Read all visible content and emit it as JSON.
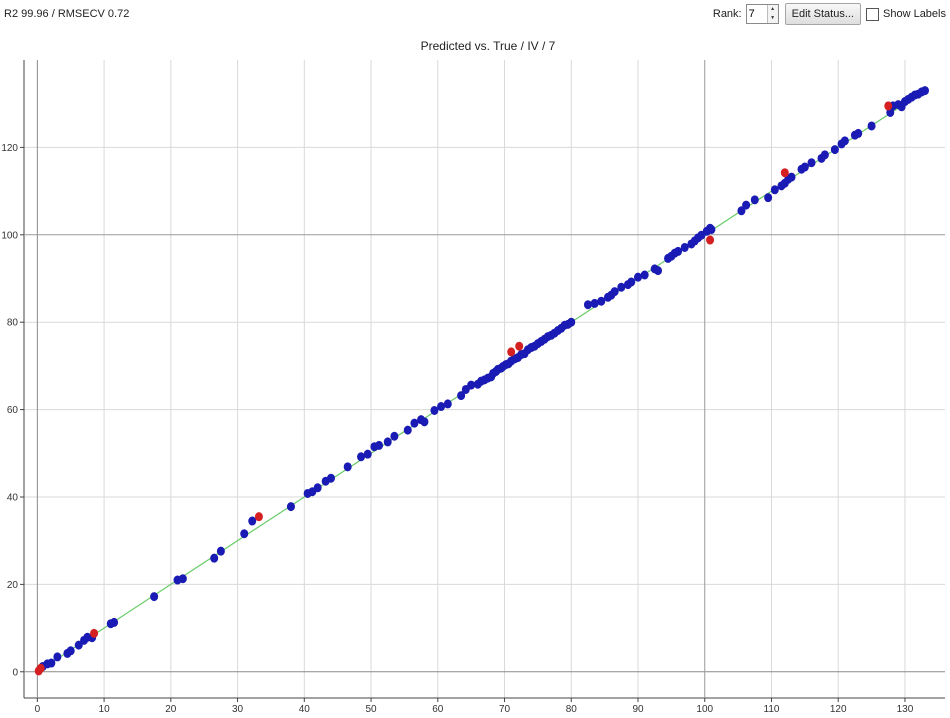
{
  "stats_text": "R2 99.96 / RMSECV 0.72",
  "toolbar": {
    "rank_label": "Rank:",
    "rank_value": "7",
    "edit_status_label": "Edit Status...",
    "show_labels_label": "Show Labels",
    "show_labels_checked": false
  },
  "chart_data": {
    "type": "scatter",
    "title": "Predicted vs. True / IV / 7",
    "xlabel": "",
    "ylabel": "",
    "xlim": [
      -2,
      136
    ],
    "ylim": [
      -6,
      140
    ],
    "xticks": [
      0,
      10,
      20,
      30,
      40,
      50,
      60,
      70,
      80,
      90,
      100,
      110,
      120,
      130
    ],
    "yticks": [
      0,
      20,
      40,
      60,
      80,
      100,
      120
    ],
    "grid": true,
    "fit_line": {
      "x": [
        0,
        133
      ],
      "y": [
        0,
        133
      ],
      "color": "#66cc66"
    },
    "colors": {
      "calibration": "#1a1ab4",
      "outlier": "#d42020",
      "axes": "#444444",
      "grid": "#d9d9d9"
    },
    "series": [
      {
        "color": "#1a1ab4",
        "points": [
          [
            0.8,
            1.2
          ],
          [
            1.5,
            1.8
          ],
          [
            2.1,
            2.0
          ],
          [
            3,
            3.4
          ],
          [
            4.5,
            4.2
          ],
          [
            5,
            4.8
          ],
          [
            6.2,
            6.1
          ],
          [
            7,
            7.2
          ],
          [
            7.5,
            7.9
          ],
          [
            8.2,
            7.8
          ],
          [
            11,
            11
          ],
          [
            11.5,
            11.3
          ],
          [
            17.5,
            17.2
          ],
          [
            21,
            21
          ],
          [
            21.8,
            21.3
          ],
          [
            26.5,
            26
          ],
          [
            27.5,
            27.6
          ],
          [
            31,
            31.6
          ],
          [
            32.2,
            34.5
          ],
          [
            38,
            37.8
          ],
          [
            40.5,
            40.8
          ],
          [
            41.2,
            41.2
          ],
          [
            42,
            42.1
          ],
          [
            43.2,
            43.6
          ],
          [
            44,
            44.3
          ],
          [
            46.5,
            46.9
          ],
          [
            48.5,
            49.2
          ],
          [
            49.5,
            49.8
          ],
          [
            50.5,
            51.5
          ],
          [
            51.2,
            51.8
          ],
          [
            52.5,
            52.6
          ],
          [
            53.5,
            53.9
          ],
          [
            55.5,
            55.3
          ],
          [
            56.5,
            56.9
          ],
          [
            57.5,
            57.7
          ],
          [
            58,
            57.2
          ],
          [
            59.5,
            59.8
          ],
          [
            60.5,
            60.7
          ],
          [
            61.5,
            61.3
          ],
          [
            63.5,
            63.2
          ],
          [
            64.2,
            64.6
          ],
          [
            65,
            65.6
          ],
          [
            66,
            65.8
          ],
          [
            66.5,
            66.5
          ],
          [
            67,
            66.8
          ],
          [
            67.5,
            67.2
          ],
          [
            68,
            67.5
          ],
          [
            68.3,
            68.3
          ],
          [
            68.7,
            68.7
          ],
          [
            69,
            69.2
          ],
          [
            69.5,
            69.5
          ],
          [
            69.8,
            69.9
          ],
          [
            70.2,
            70.3
          ],
          [
            70.6,
            70.5
          ],
          [
            71,
            71.1
          ],
          [
            71.5,
            71.6
          ],
          [
            72,
            71.9
          ],
          [
            72.5,
            72.6
          ],
          [
            73,
            72.8
          ],
          [
            73.5,
            73.7
          ],
          [
            74,
            74.2
          ],
          [
            74.5,
            74.5
          ],
          [
            75,
            75.1
          ],
          [
            75.5,
            75.6
          ],
          [
            76,
            76.1
          ],
          [
            76.5,
            76.7
          ],
          [
            77,
            77
          ],
          [
            77.5,
            77.5
          ],
          [
            78,
            78.1
          ],
          [
            78.5,
            78.6
          ],
          [
            79,
            79.3
          ],
          [
            79.5,
            79.5
          ],
          [
            80,
            80
          ],
          [
            82.5,
            84
          ],
          [
            83.5,
            84.3
          ],
          [
            84.5,
            84.8
          ],
          [
            85.5,
            85.7
          ],
          [
            86,
            86.2
          ],
          [
            86.5,
            87
          ],
          [
            87.5,
            88
          ],
          [
            88.5,
            88.6
          ],
          [
            89,
            89.2
          ],
          [
            90,
            90.3
          ],
          [
            91,
            90.8
          ],
          [
            92.5,
            92.2
          ],
          [
            93,
            91.8
          ],
          [
            94.5,
            94.6
          ],
          [
            95,
            95.1
          ],
          [
            95.5,
            95.8
          ],
          [
            96,
            96.2
          ],
          [
            97,
            97.1
          ],
          [
            98,
            97.9
          ],
          [
            98.5,
            98.6
          ],
          [
            99,
            99.3
          ],
          [
            99.5,
            99.9
          ],
          [
            100.3,
            100.8
          ],
          [
            100.8,
            101.5
          ],
          [
            101,
            101.2
          ],
          [
            105.5,
            105.5
          ],
          [
            106.2,
            106.8
          ],
          [
            107.5,
            108
          ],
          [
            109.5,
            108.5
          ],
          [
            110.5,
            110.3
          ],
          [
            111.5,
            111.2
          ],
          [
            112,
            111.8
          ],
          [
            112.5,
            112.7
          ],
          [
            113,
            113.2
          ],
          [
            114.5,
            115
          ],
          [
            115,
            115.5
          ],
          [
            116,
            116.5
          ],
          [
            117.5,
            117.5
          ],
          [
            118,
            118.3
          ],
          [
            119.5,
            119.5
          ],
          [
            120.5,
            120.8
          ],
          [
            121,
            121.5
          ],
          [
            122.5,
            122.8
          ],
          [
            123,
            123.2
          ],
          [
            125,
            124.9
          ],
          [
            127.8,
            128
          ],
          [
            128.2,
            129.5
          ],
          [
            129,
            129.8
          ],
          [
            129.5,
            129.3
          ],
          [
            130,
            130.5
          ],
          [
            130.5,
            131
          ],
          [
            131,
            131.5
          ],
          [
            131.5,
            132
          ],
          [
            132,
            132.2
          ],
          [
            132.5,
            132.7
          ],
          [
            133,
            133
          ]
        ]
      },
      {
        "color": "#d42020",
        "points": [
          [
            0.2,
            0.2
          ],
          [
            0.5,
            0.8
          ],
          [
            8.5,
            8.8
          ],
          [
            33.2,
            35.5
          ],
          [
            71,
            73.2
          ],
          [
            72.2,
            74.5
          ],
          [
            100.8,
            98.8
          ],
          [
            112,
            114.2
          ],
          [
            127.5,
            129.5
          ]
        ]
      }
    ]
  }
}
